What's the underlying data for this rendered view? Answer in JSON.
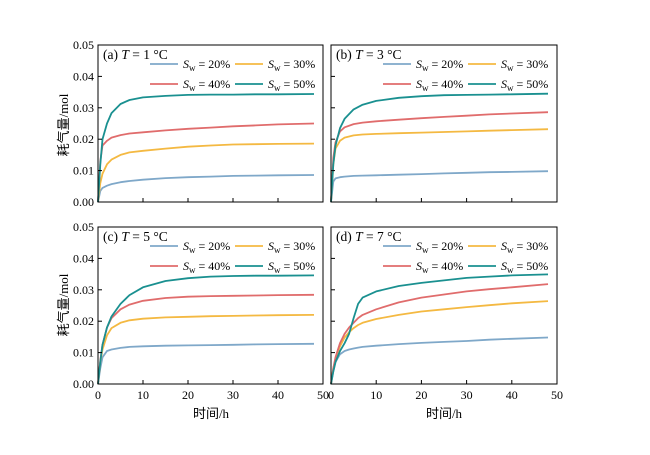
{
  "chart_data": [
    {
      "type": "line",
      "label": "(a)",
      "temp_var": "T",
      "temp_rest": " = 1 °C",
      "x": [
        0,
        0.5,
        1,
        2,
        3,
        5,
        7,
        10,
        15,
        20,
        25,
        30,
        35,
        40,
        48
      ],
      "series": [
        {
          "name": "20%",
          "color": "#7fa8c9",
          "values": [
            0.0,
            0.0035,
            0.0045,
            0.0052,
            0.0057,
            0.0063,
            0.0067,
            0.0071,
            0.0076,
            0.0079,
            0.0081,
            0.0083,
            0.0084,
            0.0085,
            0.0086
          ]
        },
        {
          "name": "30%",
          "color": "#f4b942",
          "values": [
            0.0,
            0.006,
            0.009,
            0.012,
            0.0135,
            0.015,
            0.0158,
            0.0163,
            0.017,
            0.0176,
            0.018,
            0.0183,
            0.0184,
            0.0185,
            0.0186
          ]
        },
        {
          "name": "40%",
          "color": "#e06c6c",
          "values": [
            0.0,
            0.013,
            0.018,
            0.0195,
            0.0205,
            0.0213,
            0.0218,
            0.0222,
            0.0228,
            0.0233,
            0.0237,
            0.0241,
            0.0244,
            0.0247,
            0.025
          ]
        },
        {
          "name": "50%",
          "color": "#1a9090",
          "values": [
            0.0,
            0.012,
            0.02,
            0.025,
            0.0283,
            0.0312,
            0.0325,
            0.0333,
            0.0338,
            0.0341,
            0.0342,
            0.0342,
            0.0343,
            0.0343,
            0.0344
          ]
        }
      ]
    },
    {
      "type": "line",
      "label": "(b)",
      "temp_var": "T",
      "temp_rest": " = 3 °C",
      "x": [
        0,
        0.5,
        1,
        2,
        3,
        5,
        7,
        10,
        15,
        20,
        25,
        30,
        35,
        40,
        48
      ],
      "series": [
        {
          "name": "20%",
          "color": "#7fa8c9",
          "values": [
            0.0,
            0.0065,
            0.0075,
            0.0079,
            0.0081,
            0.0083,
            0.0084,
            0.0085,
            0.0087,
            0.0089,
            0.0091,
            0.0093,
            0.0095,
            0.0096,
            0.0098
          ]
        },
        {
          "name": "30%",
          "color": "#f4b942",
          "values": [
            0.0,
            0.012,
            0.017,
            0.0195,
            0.0205,
            0.0212,
            0.0215,
            0.0217,
            0.0219,
            0.0221,
            0.0223,
            0.0225,
            0.0227,
            0.0229,
            0.0232
          ]
        },
        {
          "name": "40%",
          "color": "#e06c6c",
          "values": [
            0.0,
            0.014,
            0.019,
            0.0225,
            0.0238,
            0.0248,
            0.0253,
            0.0257,
            0.0262,
            0.0267,
            0.0271,
            0.0275,
            0.0279,
            0.0282,
            0.0286
          ]
        },
        {
          "name": "50%",
          "color": "#1a9090",
          "values": [
            0.0,
            0.012,
            0.018,
            0.0235,
            0.0265,
            0.0295,
            0.031,
            0.0322,
            0.0332,
            0.0337,
            0.034,
            0.0341,
            0.0342,
            0.0343,
            0.0345
          ]
        }
      ]
    },
    {
      "type": "line",
      "label": "(c)",
      "temp_var": "T",
      "temp_rest": " = 5 °C",
      "x": [
        0,
        0.5,
        1,
        2,
        3,
        5,
        7,
        10,
        15,
        20,
        25,
        30,
        35,
        40,
        48
      ],
      "series": [
        {
          "name": "20%",
          "color": "#7fa8c9",
          "values": [
            0.0,
            0.005,
            0.0085,
            0.0105,
            0.011,
            0.0115,
            0.0118,
            0.012,
            0.0122,
            0.0123,
            0.0124,
            0.0125,
            0.0126,
            0.0127,
            0.0128
          ]
        },
        {
          "name": "30%",
          "color": "#f4b942",
          "values": [
            0.0,
            0.007,
            0.011,
            0.0155,
            0.0178,
            0.0195,
            0.0203,
            0.0208,
            0.0212,
            0.0214,
            0.0216,
            0.0217,
            0.0218,
            0.0219,
            0.022
          ]
        },
        {
          "name": "40%",
          "color": "#e06c6c",
          "values": [
            0.0,
            0.0075,
            0.0125,
            0.018,
            0.021,
            0.0238,
            0.0253,
            0.0265,
            0.0274,
            0.0278,
            0.028,
            0.0281,
            0.0282,
            0.0283,
            0.0284
          ]
        },
        {
          "name": "50%",
          "color": "#1a9090",
          "values": [
            0.0,
            0.007,
            0.0125,
            0.018,
            0.0215,
            0.0255,
            0.0283,
            0.0308,
            0.0328,
            0.0337,
            0.0342,
            0.0344,
            0.0345,
            0.0345,
            0.0346
          ]
        }
      ]
    },
    {
      "type": "line",
      "label": "(d)",
      "temp_var": "T",
      "temp_rest": " = 7 °C",
      "x": [
        0,
        0.5,
        1,
        2,
        3,
        4,
        5,
        6,
        7,
        10,
        15,
        20,
        25,
        30,
        35,
        40,
        48
      ],
      "series": [
        {
          "name": "20%",
          "color": "#7fa8c9",
          "values": [
            0.0,
            0.004,
            0.007,
            0.0095,
            0.0105,
            0.011,
            0.0113,
            0.0116,
            0.0118,
            0.0122,
            0.0127,
            0.0131,
            0.0134,
            0.0137,
            0.0141,
            0.0144,
            0.0148
          ]
        },
        {
          "name": "30%",
          "color": "#f4b942",
          "values": [
            0.0,
            0.005,
            0.008,
            0.012,
            0.0148,
            0.0165,
            0.0178,
            0.0188,
            0.0195,
            0.0207,
            0.022,
            0.0231,
            0.0238,
            0.0245,
            0.0251,
            0.0257,
            0.0264
          ]
        },
        {
          "name": "40%",
          "color": "#e06c6c",
          "values": [
            0.0,
            0.005,
            0.0085,
            0.013,
            0.016,
            0.018,
            0.0195,
            0.021,
            0.022,
            0.0238,
            0.026,
            0.0275,
            0.0285,
            0.0295,
            0.0302,
            0.0308,
            0.0318
          ]
        },
        {
          "name": "50%",
          "color": "#1a9090",
          "values": [
            0.0,
            0.004,
            0.007,
            0.0105,
            0.013,
            0.016,
            0.021,
            0.0255,
            0.0275,
            0.0295,
            0.0312,
            0.0322,
            0.033,
            0.0338,
            0.0342,
            0.0346,
            0.0349
          ]
        }
      ]
    }
  ],
  "axes": {
    "xlim": [
      0,
      50
    ],
    "ylim": [
      0,
      0.05
    ],
    "x_ticks": [
      0,
      10,
      20,
      30,
      40,
      50
    ],
    "y_ticks": [
      "0.00",
      "0.01",
      "0.02",
      "0.03",
      "0.04",
      "0.05"
    ],
    "xlabel": "时间/h",
    "ylabel": "耗气量/mol"
  },
  "legend": {
    "prefix": "S",
    "subscript": "w",
    "equals": " = ",
    "placement": "top-right, 2 columns"
  }
}
